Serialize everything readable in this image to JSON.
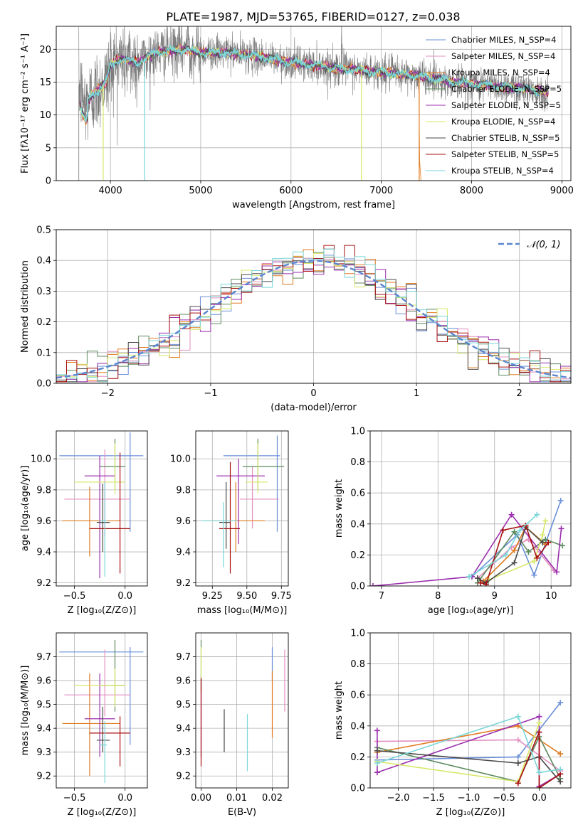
{
  "colors": [
    "#6a8fd8",
    "#e38fc0",
    "#e07b20",
    "#5d8a5e",
    "#9b2fae",
    "#d8e86a",
    "#4a4a4a",
    "#a81010",
    "#7ad6d8"
  ],
  "chart_data": [
    {
      "id": "spectrum",
      "type": "line",
      "title": "PLATE=1987, MJD=53765, FIBERID=0127, z=0.038",
      "xlabel": "wavelength [Angstrom, rest frame]",
      "ylabel": "Flux [fλ10⁻¹⁷ erg cm⁻² s⁻¹ A⁻¹]",
      "xlim": [
        3400,
        9100
      ],
      "ylim": [
        0,
        23.5
      ],
      "xticks": [
        4000,
        5000,
        6000,
        7000,
        8000,
        9000
      ],
      "yticks": [
        0,
        5,
        10,
        15,
        20
      ],
      "legend_position": "upper-right",
      "legend": [
        "Chabrier MILES, N_SSP=4",
        "Salpeter MILES, N_SSP=4",
        "Kroupa MILES, N_SSP=4",
        "Chabrier ELODIE, N_SSP=5",
        "Salpeter ELODIE, N_SSP=5",
        "Kroupa ELODIE, N_SSP=4",
        "Chabrier STELIB, N_SSP=5",
        "Salpeter STELIB, N_SSP=5",
        "Kroupa STELIB, N_SSP=4"
      ],
      "continuum": [
        [
          3650,
          14.5
        ],
        [
          3720,
          11.5
        ],
        [
          3800,
          13
        ],
        [
          3950,
          15
        ],
        [
          4000,
          17.5
        ],
        [
          4100,
          18.5
        ],
        [
          4300,
          18
        ],
        [
          4500,
          19.5
        ],
        [
          4800,
          20
        ],
        [
          5000,
          19.5
        ],
        [
          5300,
          19.5
        ],
        [
          5600,
          19
        ],
        [
          6000,
          18
        ],
        [
          6300,
          17.5
        ],
        [
          6600,
          17
        ],
        [
          7000,
          16.5
        ],
        [
          7400,
          16
        ],
        [
          7800,
          15
        ],
        [
          8200,
          14.5
        ],
        [
          8600,
          14
        ],
        [
          8850,
          13.5
        ]
      ],
      "data_range": [
        3650,
        8850
      ],
      "data_dropouts": [
        [
          3650,
          0
        ],
        [
          6560,
          23.5
        ]
      ],
      "model_dropouts": [
        [
          3920,
          0
        ],
        [
          4380,
          0
        ],
        [
          6780,
          0
        ],
        [
          7420,
          0
        ]
      ]
    },
    {
      "id": "residuals",
      "type": "histogram",
      "xlabel": "(data-model)/error",
      "ylabel": "Normed distribution",
      "xlim": [
        -2.5,
        2.5
      ],
      "ylim": [
        0,
        0.5
      ],
      "xticks": [
        -2,
        -1,
        0,
        1,
        2
      ],
      "yticks": [
        0.0,
        0.1,
        0.2,
        0.3,
        0.4,
        0.5
      ],
      "bin_width": 0.1,
      "reference_label": "𝒩(0, 1)",
      "reference_curve": {
        "mean": 0,
        "sigma": 1
      },
      "legend_position": "upper-right"
    },
    {
      "id": "age_vs_Z",
      "type": "errorbar",
      "xlabel": "Z [log₁₀(Z/Z⊙)]",
      "ylabel": "age  [log₁₀(age/yr)]",
      "xlim": [
        -0.68,
        0.22
      ],
      "ylim": [
        9.18,
        10.18
      ],
      "xticks": [
        -0.5,
        0.0
      ],
      "yticks": [
        9.2,
        9.4,
        9.6,
        9.8,
        10.0
      ],
      "points": [
        {
          "x": 0.05,
          "xlo": -0.65,
          "xhi": 0.18,
          "y": 10.02,
          "ylo": 9.53,
          "yhi": 10.17
        },
        {
          "x": -0.2,
          "xlo": -0.6,
          "xhi": 0.05,
          "y": 9.74,
          "ylo": 9.5,
          "yhi": 10.06
        },
        {
          "x": -0.35,
          "xlo": -0.62,
          "xhi": -0.05,
          "y": 9.6,
          "ylo": 9.37,
          "yhi": 9.82
        },
        {
          "x": -0.1,
          "xlo": -0.25,
          "xhi": 0.0,
          "y": 9.95,
          "ylo": 9.8,
          "yhi": 10.13
        },
        {
          "x": -0.25,
          "xlo": -0.4,
          "xhi": -0.1,
          "y": 9.89,
          "ylo": 9.23,
          "yhi": 10.02
        },
        {
          "x": -0.1,
          "xlo": -0.5,
          "xhi": 0.0,
          "y": 9.85,
          "ylo": 9.77,
          "yhi": 10.1
        },
        {
          "x": -0.22,
          "xlo": -0.28,
          "xhi": -0.15,
          "y": 9.59,
          "ylo": 9.4,
          "yhi": 9.84
        },
        {
          "x": -0.05,
          "xlo": -0.35,
          "xhi": 0.05,
          "y": 9.55,
          "ylo": 9.26,
          "yhi": 10.04
        },
        {
          "x": -0.2,
          "xlo": -0.25,
          "xhi": -0.18,
          "y": 9.6,
          "ylo": 9.24,
          "yhi": 9.85
        }
      ]
    },
    {
      "id": "age_vs_mass",
      "type": "errorbar",
      "xlabel": "mass [log₁₀(M/M⊙)]",
      "ylabel": "",
      "xlim": [
        9.13,
        9.8
      ],
      "ylim": [
        9.18,
        10.18
      ],
      "xticks": [
        9.25,
        9.5,
        9.75
      ],
      "yticks": [
        9.2,
        9.4,
        9.6,
        9.8,
        10.0
      ],
      "points": [
        {
          "x": 9.72,
          "xlo": 9.33,
          "xhi": 9.74,
          "y": 10.02,
          "ylo": 9.53,
          "yhi": 10.15
        },
        {
          "x": 9.54,
          "xlo": 9.45,
          "xhi": 9.73,
          "y": 9.74,
          "ylo": 9.55,
          "yhi": 9.95
        },
        {
          "x": 9.42,
          "xlo": 9.2,
          "xhi": 9.63,
          "y": 9.6,
          "ylo": 9.4,
          "yhi": 9.85
        },
        {
          "x": 9.58,
          "xlo": 9.47,
          "xhi": 9.77,
          "y": 9.95,
          "ylo": 9.8,
          "yhi": 10.13
        },
        {
          "x": 9.44,
          "xlo": 9.28,
          "xhi": 9.63,
          "y": 9.89,
          "ylo": 9.45,
          "yhi": 10.0
        },
        {
          "x": 9.58,
          "xlo": 9.49,
          "xhi": 9.65,
          "y": 9.85,
          "ylo": 9.78,
          "yhi": 10.1
        },
        {
          "x": 9.35,
          "xlo": 9.3,
          "xhi": 9.38,
          "y": 9.59,
          "ylo": 9.42,
          "yhi": 9.85
        },
        {
          "x": 9.38,
          "xlo": 9.3,
          "xhi": 9.45,
          "y": 9.55,
          "ylo": 9.26,
          "yhi": 9.98
        },
        {
          "x": 9.33,
          "xlo": 9.17,
          "xhi": 9.43,
          "y": 9.6,
          "ylo": 9.3,
          "yhi": 9.72
        }
      ]
    },
    {
      "id": "mass_weight_vs_age",
      "type": "line",
      "xlabel": "age  [log₁₀(age/yr)]",
      "ylabel": "mass weight",
      "xlim": [
        6.8,
        10.35
      ],
      "ylim": [
        0,
        1
      ],
      "xticks": [
        7,
        8,
        9,
        10
      ],
      "yticks": [
        0.0,
        0.2,
        0.4,
        0.6,
        0.8,
        1.0
      ],
      "series": [
        {
          "x": [
            8.6,
            9.4,
            9.7,
            10.17
          ],
          "y": [
            0.06,
            0.33,
            0.07,
            0.55
          ]
        },
        {
          "x": [
            8.7,
            9.3,
            9.6,
            10.05
          ],
          "y": [
            0.05,
            0.25,
            0.3,
            0.1
          ]
        },
        {
          "x": [
            8.8,
            9.35,
            9.55,
            9.9
          ],
          "y": [
            0.03,
            0.23,
            0.38,
            0.27
          ]
        },
        {
          "x": [
            8.7,
            9.35,
            9.6,
            9.9,
            10.2
          ],
          "y": [
            0.02,
            0.35,
            0.22,
            0.3,
            0.26
          ]
        },
        {
          "x": [
            6.85,
            8.6,
            9.3,
            10.1,
            10.18
          ],
          "y": [
            0.0,
            0.06,
            0.46,
            0.09,
            0.37
          ]
        },
        {
          "x": [
            8.9,
            9.7,
            9.85,
            9.9
          ],
          "y": [
            0.04,
            0.16,
            0.33,
            0.42
          ]
        },
        {
          "x": [
            8.7,
            8.85,
            9.35,
            9.55,
            9.85
          ],
          "y": [
            0.05,
            0.02,
            0.15,
            0.38,
            0.28
          ]
        },
        {
          "x": [
            8.75,
            8.85,
            9.15,
            9.55,
            9.75,
            9.95
          ],
          "y": [
            0.02,
            0.01,
            0.36,
            0.39,
            0.18,
            0.28
          ]
        },
        {
          "x": [
            8.55,
            9.2,
            9.45,
            9.75
          ],
          "y": [
            0.06,
            0.2,
            0.36,
            0.46
          ]
        }
      ]
    },
    {
      "id": "mass_vs_Z",
      "type": "errorbar",
      "xlabel": "Z [log₁₀(Z/Z⊙)]",
      "ylabel": "mass [log₁₀(M/M⊙)]",
      "xlim": [
        -0.68,
        0.22
      ],
      "ylim": [
        9.15,
        9.8
      ],
      "xticks": [
        -0.5,
        0.0
      ],
      "yticks": [
        9.2,
        9.3,
        9.4,
        9.5,
        9.6,
        9.7
      ],
      "points": [
        {
          "x": 0.05,
          "xlo": -0.65,
          "xhi": 0.18,
          "y": 9.72,
          "ylo": 9.33,
          "yhi": 9.74
        },
        {
          "x": -0.2,
          "xlo": -0.6,
          "xhi": 0.05,
          "y": 9.54,
          "ylo": 9.45,
          "yhi": 9.73
        },
        {
          "x": -0.35,
          "xlo": -0.62,
          "xhi": -0.05,
          "y": 9.42,
          "ylo": 9.2,
          "yhi": 9.63
        },
        {
          "x": -0.1,
          "xlo": -0.25,
          "xhi": 0.0,
          "y": 9.58,
          "ylo": 9.47,
          "yhi": 9.77
        },
        {
          "x": -0.25,
          "xlo": -0.4,
          "xhi": -0.1,
          "y": 9.44,
          "ylo": 9.28,
          "yhi": 9.63
        },
        {
          "x": -0.1,
          "xlo": -0.5,
          "xhi": 0.0,
          "y": 9.58,
          "ylo": 9.49,
          "yhi": 9.65
        },
        {
          "x": -0.22,
          "xlo": -0.28,
          "xhi": -0.15,
          "y": 9.35,
          "ylo": 9.3,
          "yhi": 9.49
        },
        {
          "x": -0.05,
          "xlo": -0.35,
          "xhi": 0.05,
          "y": 9.38,
          "ylo": 9.24,
          "yhi": 9.45
        },
        {
          "x": -0.2,
          "xlo": -0.25,
          "xhi": -0.18,
          "y": 9.33,
          "ylo": 9.17,
          "yhi": 9.43
        }
      ]
    },
    {
      "id": "mass_vs_EBV",
      "type": "errorbar",
      "xlabel": "E(B-V)",
      "ylabel": "",
      "xlim": [
        -0.0015,
        0.0245
      ],
      "ylim": [
        9.15,
        9.8
      ],
      "xticks": [
        0.0,
        0.01,
        0.02
      ],
      "yticks": [
        9.2,
        9.3,
        9.4,
        9.5,
        9.6,
        9.7
      ],
      "points": [
        {
          "x": 0.02,
          "y": 9.72,
          "ylo": 9.6,
          "yhi": 9.74
        },
        {
          "x": 0.0235,
          "y": 9.6,
          "ylo": 9.47,
          "yhi": 9.73
        },
        {
          "x": 0.02,
          "y": 9.5,
          "ylo": 9.36,
          "yhi": 9.64
        },
        {
          "x": 0.0,
          "y": 9.6,
          "ylo": 9.55,
          "yhi": 9.77
        },
        {
          "x": 0.0,
          "y": 9.5,
          "ylo": 9.28,
          "yhi": 9.62
        },
        {
          "x": 0.0,
          "y": 9.65,
          "ylo": 9.55,
          "yhi": 9.74
        },
        {
          "x": 0.0065,
          "y": 9.39,
          "ylo": 9.3,
          "yhi": 9.48
        },
        {
          "x": 0.0,
          "y": 9.4,
          "ylo": 9.24,
          "yhi": 9.61
        },
        {
          "x": 0.013,
          "y": 9.33,
          "ylo": 9.22,
          "yhi": 9.46
        }
      ]
    },
    {
      "id": "mass_weight_vs_Z",
      "type": "line",
      "xlabel": "Z [log₁₀(Z/Z⊙)]",
      "ylabel": "mass weight",
      "xlim": [
        -2.4,
        0.45
      ],
      "ylim": [
        0,
        1
      ],
      "xticks": [
        -2.0,
        -1.5,
        -1.0,
        -0.5,
        0.0
      ],
      "yticks": [
        0.0,
        0.2,
        0.4,
        0.6,
        0.8,
        1.0
      ],
      "series": [
        {
          "x": [
            -2.3,
            -0.3,
            0.3
          ],
          "y": [
            0.18,
            0.2,
            0.55
          ]
        },
        {
          "x": [
            -2.3,
            -0.3,
            0.3
          ],
          "y": [
            0.3,
            0.31,
            0.11
          ]
        },
        {
          "x": [
            -2.3,
            -0.3,
            0.3
          ],
          "y": [
            0.23,
            0.4,
            0.22
          ]
        },
        {
          "x": [
            -2.3,
            -0.3,
            0.0,
            0.3
          ],
          "y": [
            0.26,
            0.04,
            0.33,
            0.06
          ]
        },
        {
          "x": [
            -2.3,
            -2.3,
            0.0,
            0.0,
            0.3
          ],
          "y": [
            0.37,
            0.1,
            0.46,
            0.01,
            0.09
          ]
        },
        {
          "x": [
            -2.3,
            -0.3,
            0.0
          ],
          "y": [
            0.17,
            0.04,
            0.42
          ]
        },
        {
          "x": [
            -2.3,
            -0.3,
            0.0,
            0.3
          ],
          "y": [
            0.24,
            0.16,
            0.2,
            0.04
          ]
        },
        {
          "x": [
            -0.3,
            0.0,
            0.0,
            0.3
          ],
          "y": [
            0.03,
            0.36,
            0.0,
            0.09
          ]
        },
        {
          "x": [
            -2.3,
            -0.3,
            0.0,
            0.3
          ],
          "y": [
            0.16,
            0.46,
            0.1,
            0.12
          ]
        }
      ]
    }
  ]
}
